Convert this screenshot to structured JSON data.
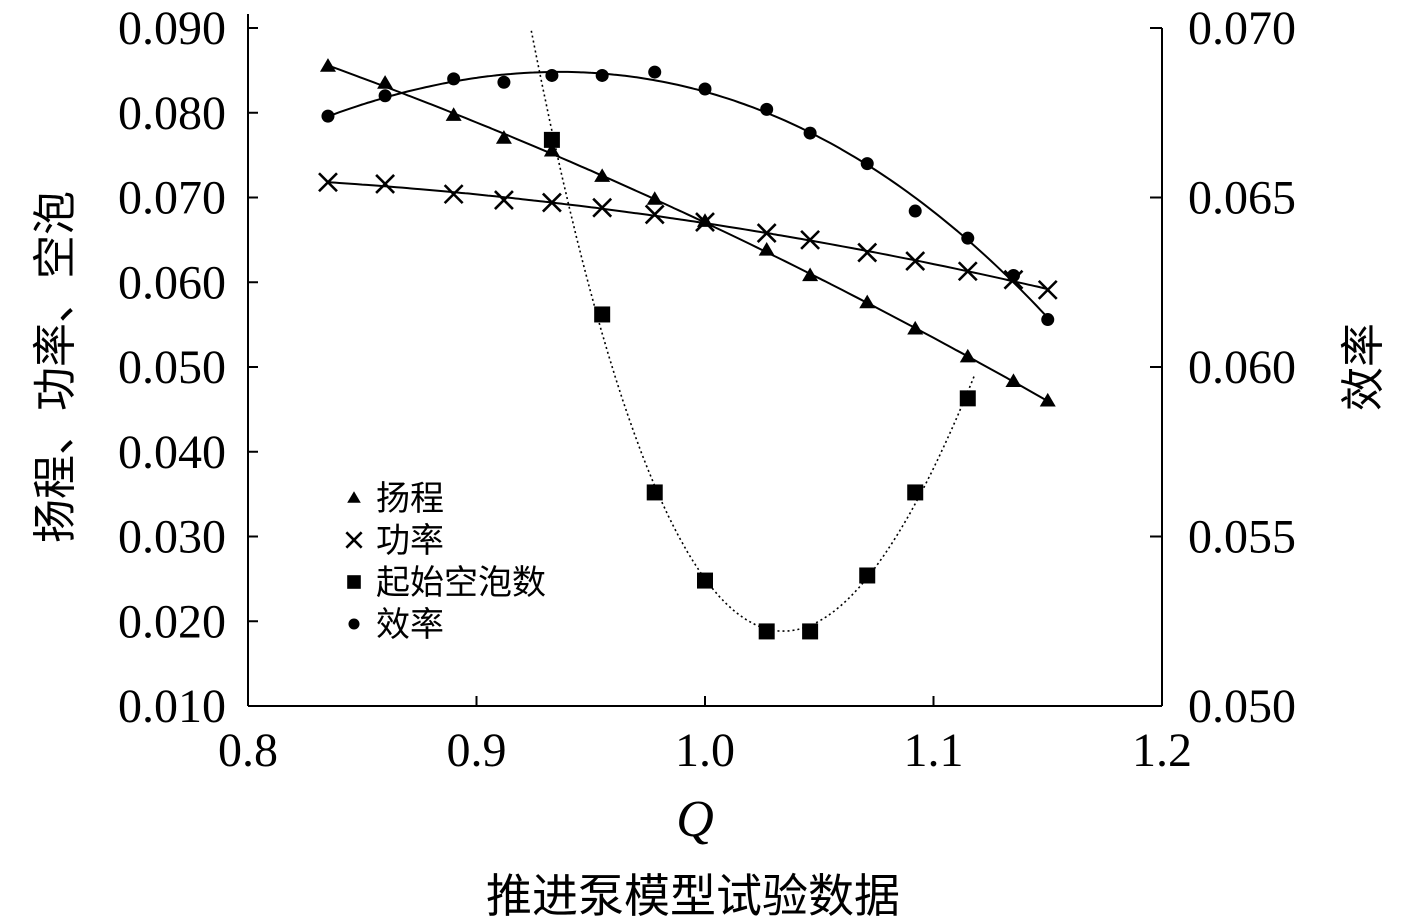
{
  "chart_data": {
    "type": "scatter",
    "caption": "推进泵模型试验数据",
    "xlabel": "Q",
    "ylabel_left": "扬程、功率、空泡",
    "ylabel_right": "效率",
    "xlim": [
      0.8,
      1.2
    ],
    "ylim_left": [
      0.01,
      0.09
    ],
    "ylim_right": [
      0.05,
      0.07
    ],
    "x_ticks": [
      "0.8",
      "0.9",
      "1.0",
      "1.1",
      "1.2"
    ],
    "y_ticks_left": [
      "0.010",
      "0.020",
      "0.030",
      "0.040",
      "0.050",
      "0.060",
      "0.070",
      "0.080",
      "0.090"
    ],
    "y_ticks_right": [
      "0.050",
      "0.055",
      "0.060",
      "0.065",
      "0.070"
    ],
    "grid": false,
    "legend_position": "lower-left",
    "series": [
      {
        "name": "扬程",
        "marker": "triangle",
        "axis": "left",
        "curve": "smooth",
        "x": [
          0.835,
          0.86,
          0.89,
          0.912,
          0.933,
          0.955,
          0.978,
          1.0,
          1.027,
          1.046,
          1.071,
          1.092,
          1.115,
          1.135,
          1.15
        ],
        "y": [
          0.0855,
          0.0835,
          0.0797,
          0.077,
          0.0755,
          0.0725,
          0.0698,
          0.0672,
          0.0638,
          0.0608,
          0.0576,
          0.0545,
          0.0512,
          0.0483,
          0.046
        ]
      },
      {
        "name": "功率",
        "marker": "x",
        "axis": "left",
        "curve": "smooth",
        "x": [
          0.835,
          0.86,
          0.89,
          0.912,
          0.933,
          0.955,
          0.978,
          1.0,
          1.027,
          1.046,
          1.071,
          1.092,
          1.115,
          1.135,
          1.15
        ],
        "y": [
          0.0718,
          0.0716,
          0.0704,
          0.0697,
          0.0694,
          0.0688,
          0.068,
          0.0671,
          0.0658,
          0.065,
          0.0635,
          0.0625,
          0.0613,
          0.0603,
          0.0591
        ]
      },
      {
        "name": "起始空泡数",
        "marker": "square",
        "axis": "left",
        "curve": "dotted",
        "x": [
          0.933,
          0.955,
          0.978,
          1.0,
          1.027,
          1.046,
          1.071,
          1.092,
          1.115
        ],
        "y": [
          0.0768,
          0.0562,
          0.0352,
          0.0248,
          0.0188,
          0.0188,
          0.0254,
          0.0352,
          0.0463
        ]
      },
      {
        "name": "效率",
        "marker": "circle",
        "axis": "right",
        "curve": "smooth",
        "x": [
          0.835,
          0.86,
          0.89,
          0.912,
          0.933,
          0.955,
          0.978,
          1.0,
          1.027,
          1.046,
          1.071,
          1.092,
          1.115,
          1.135,
          1.15
        ],
        "y": [
          0.0674,
          0.068,
          0.0685,
          0.0684,
          0.0686,
          0.0686,
          0.0687,
          0.0682,
          0.0676,
          0.0669,
          0.066,
          0.0646,
          0.0638,
          0.0627,
          0.0614
        ]
      }
    ]
  }
}
